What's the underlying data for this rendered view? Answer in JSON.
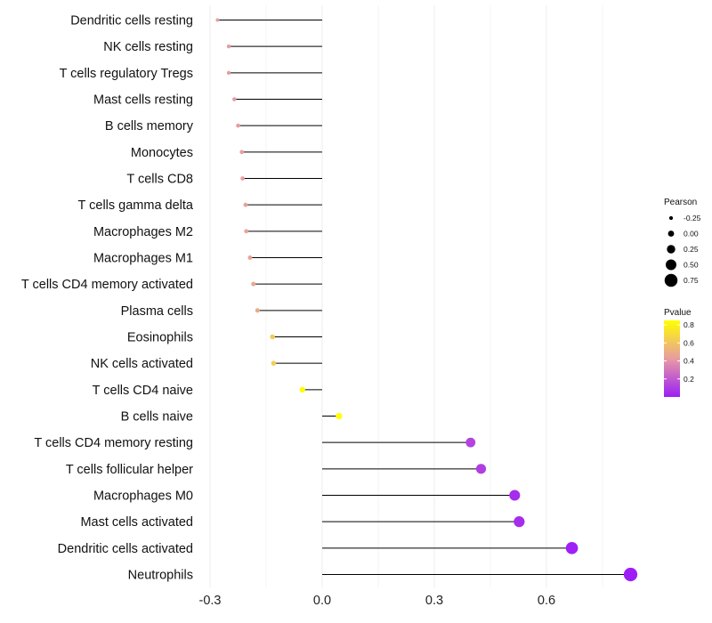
{
  "chart_data": {
    "type": "lollipop",
    "title": "",
    "xlabel": "",
    "ylabel": "",
    "xlim": [
      -0.3,
      0.82
    ],
    "x_ticks": [
      -0.3,
      0.0,
      0.3,
      0.6
    ],
    "x_tick_labels": [
      "-0.3",
      "0.0",
      "0.3",
      "0.6"
    ],
    "grid": true,
    "baseline": 0,
    "categories": [
      "Dendritic cells resting",
      "NK cells resting",
      "T cells regulatory  Tregs",
      "Mast cells resting",
      "B cells memory",
      "Monocytes",
      "T cells CD8",
      "T cells gamma delta",
      "Macrophages M2",
      "Macrophages M1",
      "T cells CD4 memory activated",
      "Plasma cells",
      "Eosinophils",
      "NK cells activated",
      "T cells CD4 naive",
      "B cells naive",
      "T cells CD4 memory resting",
      "T cells follicular helper",
      "Macrophages M0",
      "Mast cells activated",
      "Dendritic cells activated",
      "Neutrophils"
    ],
    "values": [
      -0.28,
      -0.25,
      -0.25,
      -0.235,
      -0.225,
      -0.215,
      -0.213,
      -0.205,
      -0.203,
      -0.193,
      -0.184,
      -0.173,
      -0.133,
      -0.13,
      -0.053,
      0.045,
      0.397,
      0.425,
      0.515,
      0.527,
      0.668,
      0.825
    ],
    "pvalues": [
      0.45,
      0.42,
      0.42,
      0.42,
      0.43,
      0.44,
      0.44,
      0.45,
      0.45,
      0.46,
      0.47,
      0.49,
      0.63,
      0.64,
      0.84,
      0.85,
      0.13,
      0.11,
      0.05,
      0.05,
      0.01,
      0.003
    ],
    "legend_position": "right",
    "size_legend": {
      "title": "Pearson",
      "values": [
        -0.25,
        0.0,
        0.25,
        0.5,
        0.75
      ],
      "labels": [
        "-0.25",
        "0.00",
        "0.25",
        "0.50",
        "0.75"
      ]
    },
    "color_legend": {
      "title": "Pvalue",
      "ticks": [
        0.2,
        0.4,
        0.6,
        0.8
      ],
      "labels": [
        "0.2",
        "0.4",
        "0.6",
        "0.8"
      ],
      "range": [
        0,
        0.85
      ],
      "colors": {
        "low": "#9c1ef7",
        "mid": "#e89ba2",
        "high": "#ffff00"
      }
    },
    "colors": {
      "stem": "#000000",
      "grid": "#ececec"
    }
  }
}
